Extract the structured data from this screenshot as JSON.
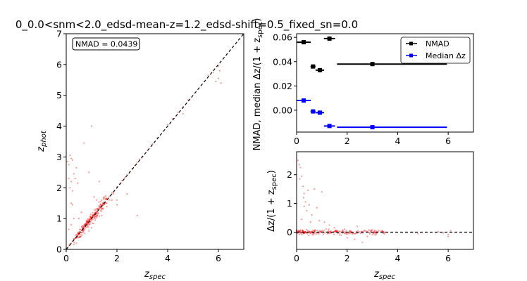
{
  "title": "0_0.0<snm<2.0_edsd-mean-z=1.2_edsd-shift=0.5_fixed_sn=0.0",
  "chart_data": [
    {
      "type": "scatter",
      "xlabel": "z_spec",
      "ylabel": "z_phot",
      "xlim": [
        0,
        7
      ],
      "ylim": [
        0,
        7
      ],
      "xticks": [
        0,
        2,
        4,
        6
      ],
      "yticks": [
        0,
        1,
        2,
        3,
        4,
        5,
        6,
        7
      ],
      "annotation": "NMAD = 0.0439",
      "reference_line": {
        "style": "dashed",
        "color": "#000000",
        "from": [
          0,
          0
        ],
        "to": [
          7,
          7
        ]
      },
      "point_color": "#ff0000",
      "cluster_points": [
        [
          0.05,
          0.05
        ],
        [
          0.1,
          0.12
        ],
        [
          0.15,
          0.17
        ],
        [
          0.2,
          0.2
        ],
        [
          0.25,
          0.27
        ],
        [
          0.3,
          0.33
        ],
        [
          0.35,
          0.36
        ],
        [
          0.4,
          0.43
        ],
        [
          0.45,
          0.46
        ],
        [
          0.5,
          0.52
        ],
        [
          0.55,
          0.57
        ],
        [
          0.6,
          0.62
        ],
        [
          0.65,
          0.66
        ],
        [
          0.7,
          0.73
        ],
        [
          0.75,
          0.77
        ],
        [
          0.8,
          0.82
        ],
        [
          0.85,
          0.87
        ],
        [
          0.9,
          0.93
        ],
        [
          0.95,
          0.97
        ],
        [
          1.0,
          1.02
        ],
        [
          1.05,
          1.08
        ],
        [
          1.1,
          1.12
        ],
        [
          1.15,
          1.18
        ],
        [
          1.2,
          1.22
        ],
        [
          1.25,
          1.28
        ],
        [
          1.3,
          1.33
        ],
        [
          1.35,
          1.38
        ],
        [
          1.4,
          1.42
        ],
        [
          1.45,
          1.48
        ],
        [
          1.5,
          1.53
        ],
        [
          1.6,
          1.63
        ],
        [
          1.7,
          1.72
        ],
        [
          1.8,
          1.83
        ],
        [
          1.9,
          1.92
        ],
        [
          2.0,
          2.03
        ],
        [
          2.1,
          2.12
        ],
        [
          2.2,
          2.23
        ],
        [
          2.3,
          2.32
        ],
        [
          2.4,
          2.43
        ],
        [
          2.5,
          2.52
        ],
        [
          2.6,
          2.62
        ],
        [
          2.7,
          2.72
        ],
        [
          2.8,
          2.83
        ],
        [
          2.9,
          2.93
        ],
        [
          3.0,
          3.02
        ],
        [
          3.2,
          3.22
        ],
        [
          3.4,
          3.42
        ],
        [
          3.6,
          3.62
        ],
        [
          4.0,
          4.05
        ],
        [
          4.2,
          4.25
        ],
        [
          4.4,
          4.45
        ],
        [
          4.6,
          4.62
        ],
        [
          4.8,
          4.85
        ],
        [
          5.6,
          5.65
        ],
        [
          5.8,
          5.75
        ],
        [
          6.0,
          5.95
        ],
        [
          6.0,
          5.55
        ],
        [
          5.9,
          5.45
        ],
        [
          6.1,
          5.4
        ],
        [
          6.05,
          5.8
        ]
      ],
      "outlier_points": [
        [
          0.05,
          2.85
        ],
        [
          0.1,
          2.75
        ],
        [
          0.15,
          3.05
        ],
        [
          0.2,
          2.95
        ],
        [
          0.25,
          2.9
        ],
        [
          0.1,
          2.3
        ],
        [
          0.2,
          2.2
        ],
        [
          0.15,
          2.0
        ],
        [
          0.25,
          1.9
        ],
        [
          0.2,
          1.5
        ],
        [
          0.25,
          1.45
        ],
        [
          0.3,
          2.45
        ],
        [
          0.35,
          2.3
        ],
        [
          0.4,
          2.65
        ],
        [
          0.45,
          2.15
        ],
        [
          0.1,
          0.65
        ],
        [
          0.2,
          0.8
        ],
        [
          0.3,
          1.0
        ],
        [
          0.7,
          3.45
        ],
        [
          0.9,
          2.5
        ],
        [
          1.0,
          4.0
        ],
        [
          1.3,
          2.2
        ],
        [
          1.1,
          1.7
        ],
        [
          1.2,
          1.6
        ],
        [
          1.35,
          1.55
        ],
        [
          1.45,
          1.45
        ],
        [
          1.5,
          1.7
        ],
        [
          1.6,
          1.5
        ],
        [
          1.7,
          1.6
        ],
        [
          1.85,
          1.8
        ],
        [
          2.0,
          1.45
        ],
        [
          2.4,
          1.8
        ],
        [
          2.8,
          1.1
        ],
        [
          0.6,
          1.2
        ],
        [
          0.5,
          1.0
        ],
        [
          0.4,
          0.2
        ],
        [
          0.9,
          0.6
        ],
        [
          1.0,
          0.7
        ],
        [
          1.4,
          1.1
        ],
        [
          1.8,
          1.6
        ],
        [
          2.0,
          1.6
        ],
        [
          4.6,
          4.4
        ]
      ],
      "dense_cluster": {
        "x_range": [
          0.3,
          1.6
        ],
        "slope": 1.0,
        "scatter": 0.05,
        "count": 180
      }
    },
    {
      "type": "errorbar",
      "xlabel": "",
      "ylabel": "NMAD, median Δz/(1 + z_spec)",
      "xlim": [
        0,
        7
      ],
      "ylim": [
        -0.018,
        0.063
      ],
      "xticks": [
        0,
        2,
        4,
        6
      ],
      "yticks": [
        0.0,
        0.02,
        0.04,
        0.06
      ],
      "ytick_labels": [
        "0.00",
        "0.02",
        "0.04",
        "0.06"
      ],
      "legend_position": "upper right",
      "series": [
        {
          "name": "NMAD",
          "color": "#000000",
          "points": [
            {
              "x": 0.28,
              "xerr": [
                0.28,
                0.28
              ],
              "y": 0.056
            },
            {
              "x": 0.65,
              "xerr": [
                0.1,
                0.1
              ],
              "y": 0.036
            },
            {
              "x": 0.92,
              "xerr": [
                0.17,
                0.17
              ],
              "y": 0.033
            },
            {
              "x": 1.3,
              "xerr": [
                0.22,
                0.22
              ],
              "y": 0.059
            },
            {
              "x": 3.0,
              "xerr": [
                1.4,
                2.95
              ],
              "y": 0.038
            }
          ]
        },
        {
          "name": "Median Δz",
          "color": "#0000ff",
          "points": [
            {
              "x": 0.28,
              "xerr": [
                0.28,
                0.28
              ],
              "y": 0.008
            },
            {
              "x": 0.65,
              "xerr": [
                0.1,
                0.1
              ],
              "y": -0.001
            },
            {
              "x": 0.92,
              "xerr": [
                0.17,
                0.17
              ],
              "y": -0.002
            },
            {
              "x": 1.3,
              "xerr": [
                0.22,
                0.22
              ],
              "y": -0.013
            },
            {
              "x": 3.0,
              "xerr": [
                1.4,
                2.95
              ],
              "y": -0.014
            }
          ]
        }
      ]
    },
    {
      "type": "scatter",
      "xlabel": "z_spec",
      "ylabel": "Δz/(1 + z_spec)",
      "xlim": [
        0,
        7
      ],
      "ylim": [
        -0.6,
        2.8
      ],
      "xticks": [
        0,
        2,
        4,
        6
      ],
      "yticks": [
        0,
        1,
        2
      ],
      "reference_line": {
        "style": "dashed",
        "color": "#000000",
        "y": 0
      },
      "point_color": "#ff0000",
      "points": [
        [
          0.05,
          2.5
        ],
        [
          0.1,
          2.35
        ],
        [
          0.15,
          2.25
        ],
        [
          0.12,
          1.85
        ],
        [
          0.2,
          1.95
        ],
        [
          0.25,
          1.6
        ],
        [
          0.3,
          1.35
        ],
        [
          0.28,
          1.2
        ],
        [
          0.35,
          1.05
        ],
        [
          0.45,
          1.45
        ],
        [
          0.5,
          0.95
        ],
        [
          0.7,
          1.5
        ],
        [
          0.8,
          0.85
        ],
        [
          1.0,
          1.4
        ],
        [
          0.6,
          0.6
        ],
        [
          0.4,
          0.75
        ],
        [
          0.3,
          0.9
        ],
        [
          0.2,
          0.45
        ],
        [
          0.55,
          0.35
        ],
        [
          0.9,
          0.4
        ],
        [
          1.1,
          0.35
        ],
        [
          1.3,
          0.25
        ],
        [
          1.5,
          0.15
        ],
        [
          2.4,
          0.2
        ],
        [
          2.0,
          -0.2
        ],
        [
          2.3,
          -0.25
        ],
        [
          2.6,
          -0.35
        ],
        [
          2.8,
          -0.15
        ],
        [
          3.1,
          -0.1
        ],
        [
          3.4,
          0.05
        ],
        [
          1.9,
          0.1
        ],
        [
          1.7,
          -0.1
        ],
        [
          2.1,
          0.05
        ],
        [
          4.6,
          0.0
        ],
        [
          4.8,
          -0.05
        ],
        [
          5.6,
          0.02
        ],
        [
          5.8,
          -0.03
        ],
        [
          6.0,
          -0.08
        ],
        [
          6.0,
          -0.15
        ],
        [
          6.1,
          0.05
        ]
      ],
      "dense_band": {
        "x_range": [
          0.0,
          3.5
        ],
        "y_center": 0.0,
        "scatter": 0.04,
        "count": 220
      }
    }
  ]
}
